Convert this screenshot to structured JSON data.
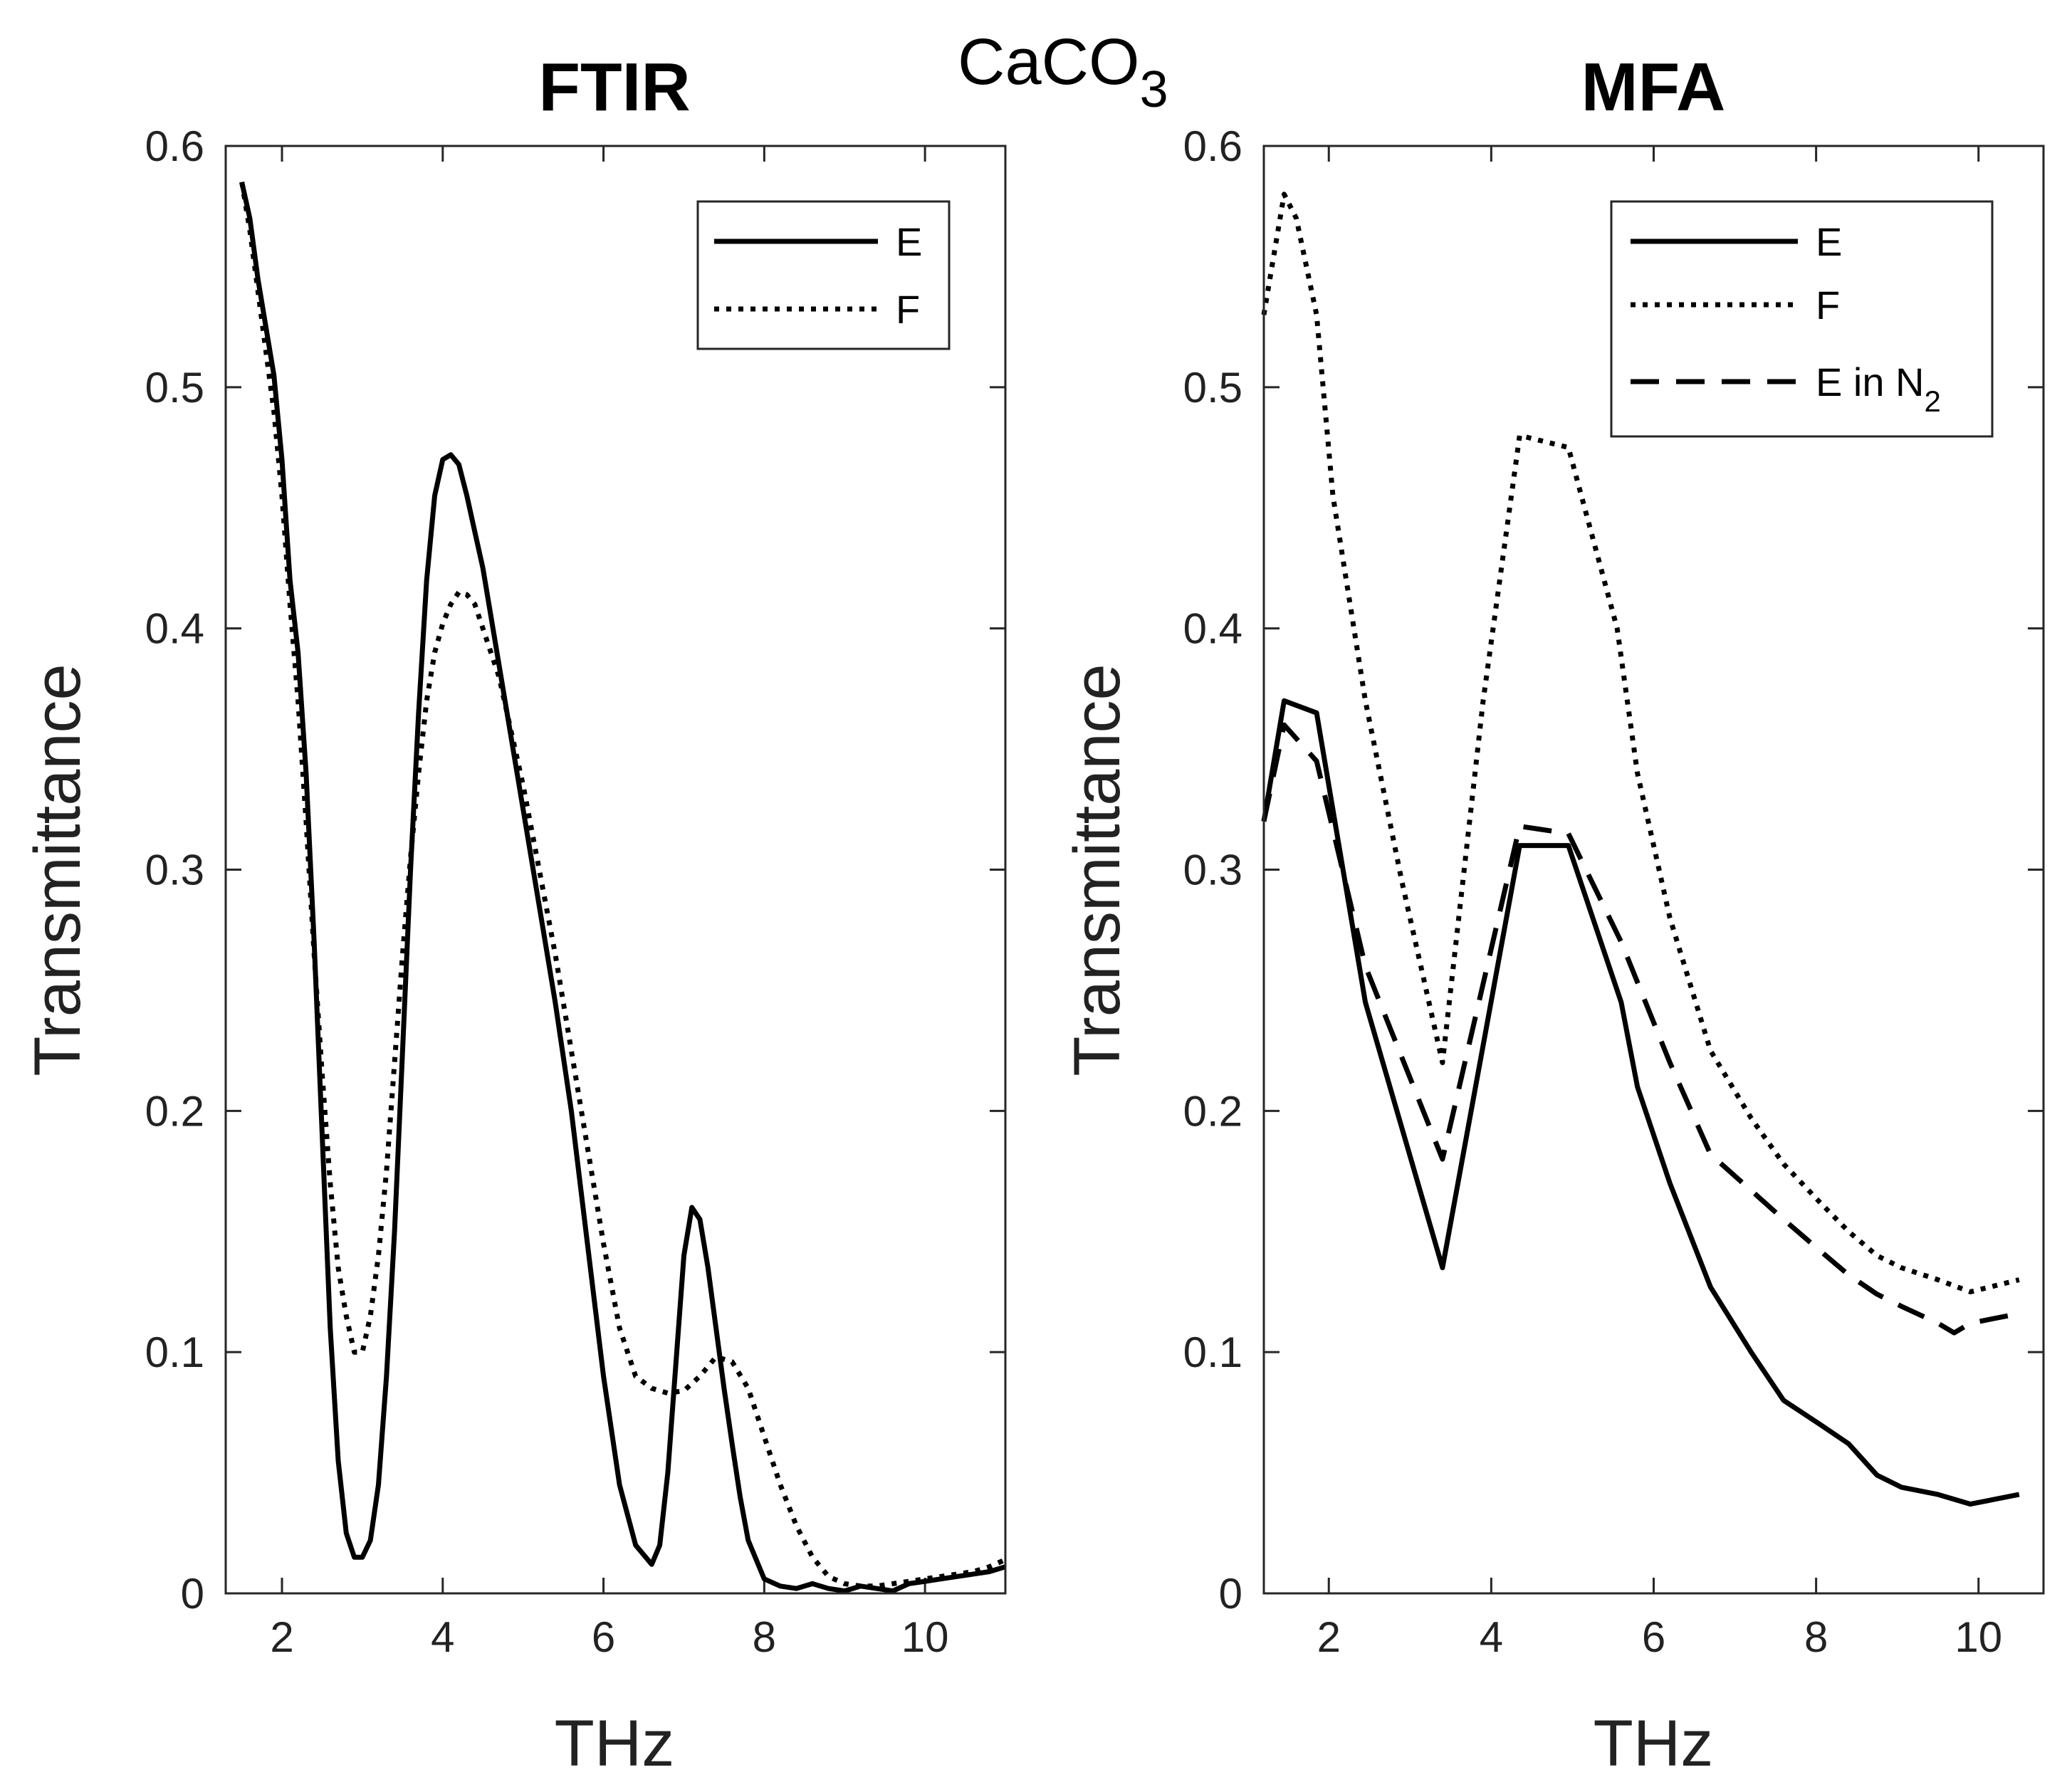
{
  "figure_title": {
    "base": "CaCO",
    "subscript": "3"
  },
  "chart_data": [
    {
      "type": "line",
      "title": "FTIR",
      "xlabel": "THz",
      "ylabel": "Transmittance",
      "xlim": [
        1.3,
        11
      ],
      "ylim": [
        0,
        0.6
      ],
      "xticks": [
        2,
        4,
        6,
        8,
        10
      ],
      "xtick_labels": [
        "2",
        "4",
        "6",
        "8",
        "10"
      ],
      "yticks": [
        0,
        0.1,
        0.2,
        0.3,
        0.4,
        0.5,
        0.6
      ],
      "ytick_labels": [
        "0",
        "0.1",
        "0.2",
        "0.3",
        "0.4",
        "0.5",
        "0.6"
      ],
      "legend_position": "top-right",
      "series": [
        {
          "name": "E",
          "style": "solid",
          "x": [
            1.5,
            1.6,
            1.7,
            1.8,
            1.9,
            2.0,
            2.1,
            2.2,
            2.3,
            2.4,
            2.5,
            2.6,
            2.7,
            2.8,
            2.9,
            3.0,
            3.1,
            3.2,
            3.3,
            3.4,
            3.5,
            3.6,
            3.7,
            3.8,
            3.9,
            4.0,
            4.1,
            4.2,
            4.3,
            4.4,
            4.5,
            4.6,
            4.7,
            4.8,
            5.0,
            5.2,
            5.4,
            5.6,
            5.8,
            6.0,
            6.2,
            6.4,
            6.6,
            6.7,
            6.8,
            6.9,
            7.0,
            7.1,
            7.2,
            7.3,
            7.4,
            7.5,
            7.6,
            7.7,
            7.8,
            8.0,
            8.2,
            8.4,
            8.6,
            8.8,
            9.0,
            9.2,
            9.4,
            9.6,
            9.8,
            10.0,
            10.2,
            10.4,
            10.6,
            10.8,
            11.0
          ],
          "y": [
            0.585,
            0.57,
            0.545,
            0.525,
            0.505,
            0.47,
            0.42,
            0.39,
            0.34,
            0.27,
            0.19,
            0.11,
            0.055,
            0.025,
            0.015,
            0.015,
            0.022,
            0.045,
            0.09,
            0.15,
            0.225,
            0.3,
            0.365,
            0.42,
            0.455,
            0.47,
            0.472,
            0.468,
            0.455,
            0.44,
            0.425,
            0.405,
            0.385,
            0.365,
            0.325,
            0.285,
            0.245,
            0.2,
            0.145,
            0.09,
            0.045,
            0.02,
            0.012,
            0.02,
            0.05,
            0.095,
            0.14,
            0.16,
            0.155,
            0.135,
            0.11,
            0.085,
            0.062,
            0.04,
            0.022,
            0.006,
            0.003,
            0.002,
            0.004,
            0.002,
            0.001,
            0.003,
            0.002,
            0.001,
            0.004,
            0.005,
            0.006,
            0.007,
            0.008,
            0.009,
            0.011
          ]
        },
        {
          "name": "F",
          "style": "dotted",
          "x": [
            1.5,
            1.6,
            1.7,
            1.8,
            1.9,
            2.0,
            2.1,
            2.2,
            2.3,
            2.4,
            2.5,
            2.6,
            2.7,
            2.8,
            2.9,
            3.0,
            3.1,
            3.2,
            3.3,
            3.4,
            3.5,
            3.6,
            3.7,
            3.8,
            3.9,
            4.0,
            4.1,
            4.2,
            4.3,
            4.4,
            4.5,
            4.6,
            4.7,
            4.8,
            5.0,
            5.2,
            5.4,
            5.6,
            5.8,
            6.0,
            6.2,
            6.4,
            6.6,
            6.8,
            7.0,
            7.2,
            7.4,
            7.6,
            7.8,
            8.0,
            8.2,
            8.4,
            8.6,
            8.8,
            9.0,
            9.2,
            9.4,
            9.6,
            9.8,
            10.0,
            10.2,
            10.4,
            10.6,
            10.8,
            11.0
          ],
          "y": [
            0.585,
            0.565,
            0.54,
            0.515,
            0.49,
            0.455,
            0.41,
            0.37,
            0.32,
            0.265,
            0.215,
            0.17,
            0.135,
            0.115,
            0.1,
            0.1,
            0.115,
            0.14,
            0.175,
            0.22,
            0.265,
            0.305,
            0.34,
            0.37,
            0.39,
            0.402,
            0.41,
            0.415,
            0.414,
            0.41,
            0.4,
            0.39,
            0.38,
            0.365,
            0.335,
            0.3,
            0.265,
            0.225,
            0.185,
            0.145,
            0.11,
            0.09,
            0.085,
            0.083,
            0.084,
            0.09,
            0.098,
            0.096,
            0.085,
            0.065,
            0.045,
            0.028,
            0.015,
            0.007,
            0.004,
            0.003,
            0.003,
            0.004,
            0.005,
            0.006,
            0.007,
            0.008,
            0.009,
            0.011,
            0.014
          ]
        }
      ]
    },
    {
      "type": "line",
      "title": "MFA",
      "xlabel": "THz",
      "ylabel": "Transmittance",
      "xlim": [
        1.2,
        10.8
      ],
      "ylim": [
        0,
        0.6
      ],
      "xticks": [
        2,
        4,
        6,
        8,
        10
      ],
      "xtick_labels": [
        "2",
        "4",
        "6",
        "8",
        "10"
      ],
      "yticks": [
        0,
        0.1,
        0.2,
        0.3,
        0.4,
        0.5,
        0.6
      ],
      "ytick_labels": [
        "0",
        "0.1",
        "0.2",
        "0.3",
        "0.4",
        "0.5",
        "0.6"
      ],
      "legend_position": "top-right",
      "series": [
        {
          "name": "E",
          "style": "solid",
          "x": [
            1.2,
            1.45,
            1.85,
            2.45,
            3.4,
            4.35,
            4.95,
            5.6,
            5.8,
            6.2,
            6.7,
            7.2,
            7.6,
            8.05,
            8.4,
            8.75,
            9.05,
            9.5,
            9.9,
            10.5
          ],
          "y": [
            0.32,
            0.37,
            0.365,
            0.245,
            0.135,
            0.31,
            0.31,
            0.245,
            0.21,
            0.17,
            0.127,
            0.1,
            0.08,
            0.07,
            0.062,
            0.049,
            0.044,
            0.041,
            0.037,
            0.041
          ]
        },
        {
          "name": "F",
          "style": "dotted",
          "x": [
            1.2,
            1.45,
            1.6,
            1.85,
            2.05,
            2.45,
            2.9,
            3.4,
            3.9,
            4.35,
            4.95,
            5.55,
            5.8,
            6.2,
            6.7,
            7.2,
            7.6,
            8.05,
            8.4,
            8.75,
            9.05,
            9.5,
            9.9,
            10.5
          ],
          "y": [
            0.53,
            0.58,
            0.57,
            0.53,
            0.455,
            0.37,
            0.295,
            0.22,
            0.37,
            0.48,
            0.475,
            0.4,
            0.34,
            0.28,
            0.225,
            0.197,
            0.178,
            0.162,
            0.15,
            0.14,
            0.135,
            0.13,
            0.125,
            0.13
          ]
        },
        {
          "name": "E in N2",
          "label_base": "E in N",
          "label_subscript": "2",
          "style": "dashed",
          "x": [
            1.2,
            1.45,
            1.85,
            2.45,
            3.4,
            4.35,
            4.95,
            5.6,
            6.2,
            6.7,
            7.2,
            7.6,
            8.05,
            8.4,
            8.75,
            9.05,
            9.5,
            9.7,
            9.9,
            10.5
          ],
          "y": [
            0.32,
            0.36,
            0.345,
            0.26,
            0.18,
            0.318,
            0.315,
            0.27,
            0.22,
            0.182,
            0.167,
            0.155,
            0.142,
            0.132,
            0.124,
            0.119,
            0.112,
            0.108,
            0.112,
            0.116
          ]
        }
      ]
    }
  ]
}
